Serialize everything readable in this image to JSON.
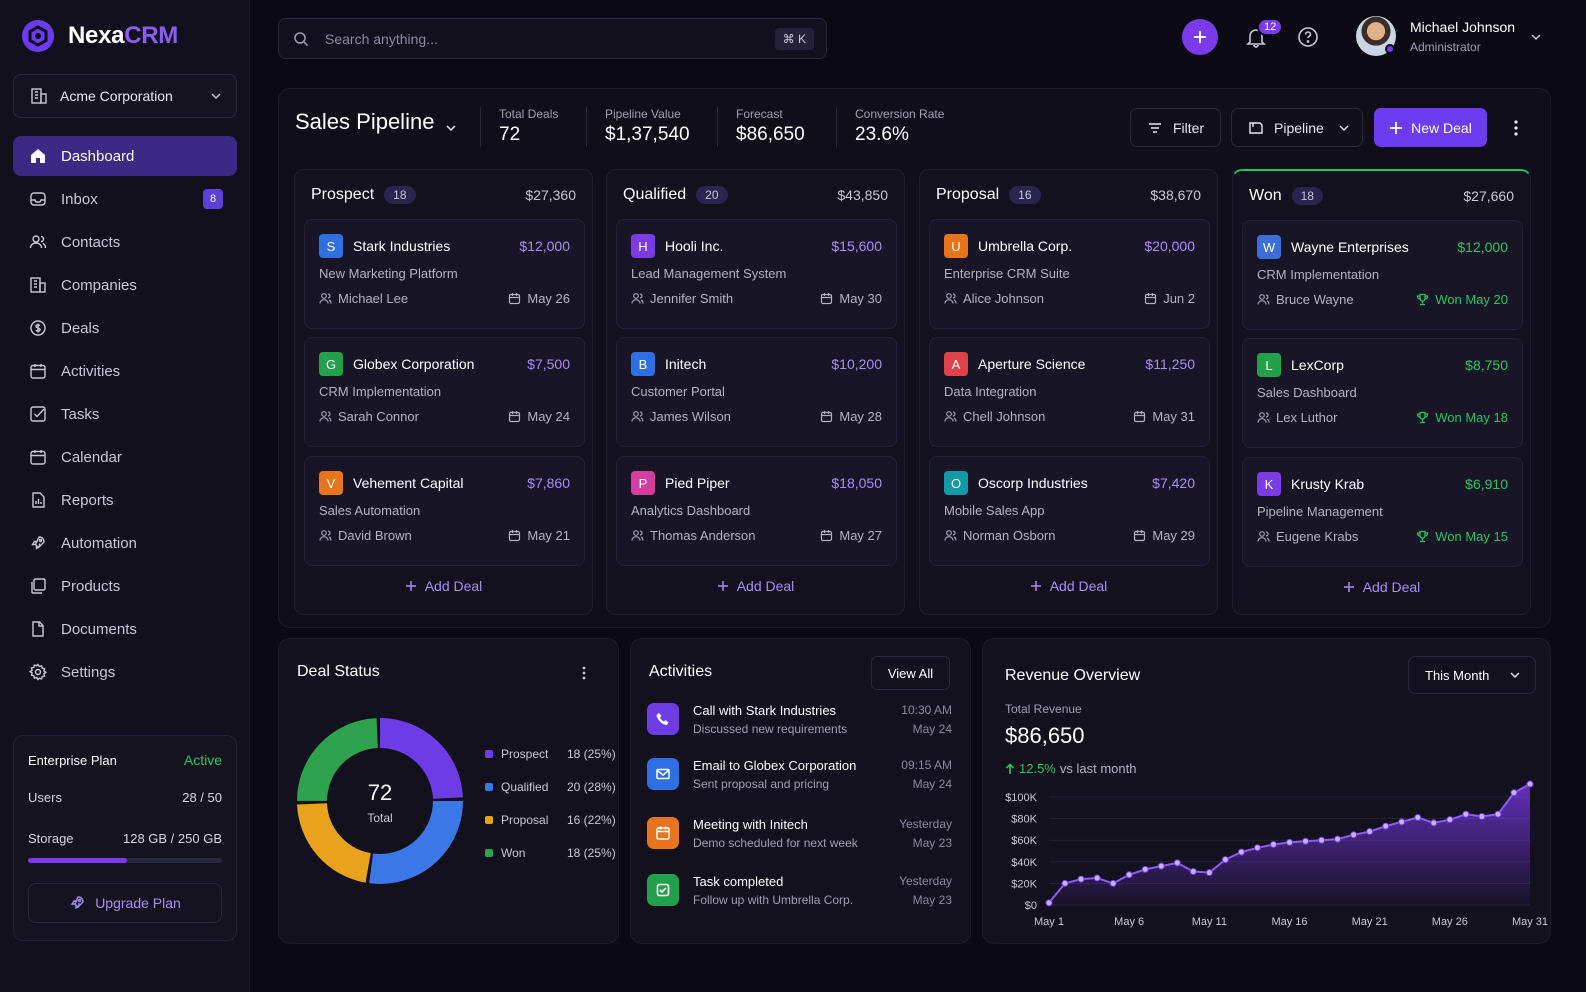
{
  "brand": {
    "name_part1": "Nexa",
    "name_part2": "CRM"
  },
  "org": {
    "name": "Acme Corporation"
  },
  "nav": [
    {
      "id": "dashboard",
      "label": "Dashboard",
      "icon": "home-icon",
      "active": true
    },
    {
      "id": "inbox",
      "label": "Inbox",
      "icon": "inbox-icon",
      "badge": "8"
    },
    {
      "id": "contacts",
      "label": "Contacts",
      "icon": "users-icon"
    },
    {
      "id": "companies",
      "label": "Companies",
      "icon": "building-icon"
    },
    {
      "id": "deals",
      "label": "Deals",
      "icon": "dollar-icon"
    },
    {
      "id": "activities",
      "label": "Activities",
      "icon": "calendar-icon"
    },
    {
      "id": "tasks",
      "label": "Tasks",
      "icon": "checkbox-icon"
    },
    {
      "id": "calendar",
      "label": "Calendar",
      "icon": "calendar-icon"
    },
    {
      "id": "reports",
      "label": "Reports",
      "icon": "report-icon"
    },
    {
      "id": "automation",
      "label": "Automation",
      "icon": "rocket-icon"
    },
    {
      "id": "products",
      "label": "Products",
      "icon": "box-icon"
    },
    {
      "id": "documents",
      "label": "Documents",
      "icon": "document-icon"
    },
    {
      "id": "settings",
      "label": "Settings",
      "icon": "gear-icon"
    }
  ],
  "plan": {
    "name": "Enterprise Plan",
    "status": "Active",
    "users_label": "Users",
    "users_value": "28 / 50",
    "storage_label": "Storage",
    "storage_value": "128 GB / 250 GB",
    "storage_fraction": 0.512,
    "upgrade_label": "Upgrade Plan"
  },
  "search": {
    "placeholder": "Search anything...",
    "shortcut": "⌘ K"
  },
  "notifications": {
    "count": "12"
  },
  "user": {
    "name": "Michael Johnson",
    "role": "Administrator"
  },
  "pipeline": {
    "title": "Sales Pipeline",
    "stats": [
      {
        "label": "Total Deals",
        "value": "72"
      },
      {
        "label": "Pipeline Value",
        "value": "$1,37,540"
      },
      {
        "label": "Forecast",
        "value": "$86,650"
      },
      {
        "label": "Conversion Rate",
        "value": "23.6%"
      }
    ],
    "filter_label": "Filter",
    "view_label": "Pipeline",
    "new_deal_label": "New Deal",
    "add_deal_label": "Add Deal",
    "columns": [
      {
        "name": "Prospect",
        "count": "18",
        "total": "$27,360",
        "deals": [
          {
            "letter": "S",
            "color": "#2f6fe4",
            "company": "Stark Industries",
            "amount": "$12,000",
            "desc": "New Marketing Platform",
            "owner": "Michael Lee",
            "date": "May 26"
          },
          {
            "letter": "G",
            "color": "#22a04b",
            "company": "Globex Corporation",
            "amount": "$7,500",
            "desc": "CRM Implementation",
            "owner": "Sarah Connor",
            "date": "May 24"
          },
          {
            "letter": "V",
            "color": "#e8741c",
            "company": "Vehement Capital",
            "amount": "$7,860",
            "desc": "Sales Automation",
            "owner": "David Brown",
            "date": "May 21"
          }
        ]
      },
      {
        "name": "Qualified",
        "count": "20",
        "total": "$43,850",
        "deals": [
          {
            "letter": "H",
            "color": "#7b3ce6",
            "company": "Hooli Inc.",
            "amount": "$15,600",
            "desc": "Lead Management System",
            "owner": "Jennifer Smith",
            "date": "May 30"
          },
          {
            "letter": "B",
            "color": "#2f6fe4",
            "company": "Initech",
            "amount": "$10,200",
            "desc": "Customer Portal",
            "owner": "James Wilson",
            "date": "May 28"
          },
          {
            "letter": "P",
            "color": "#d63da0",
            "company": "Pied Piper",
            "amount": "$18,050",
            "desc": "Analytics Dashboard",
            "owner": "Thomas Anderson",
            "date": "May 27"
          }
        ]
      },
      {
        "name": "Proposal",
        "count": "16",
        "total": "$38,670",
        "deals": [
          {
            "letter": "U",
            "color": "#e8741c",
            "company": "Umbrella Corp.",
            "amount": "$20,000",
            "desc": "Enterprise CRM Suite",
            "owner": "Alice Johnson",
            "date": "Jun 2"
          },
          {
            "letter": "A",
            "color": "#e0424a",
            "company": "Aperture Science",
            "amount": "$11,250",
            "desc": "Data Integration",
            "owner": "Chell Johnson",
            "date": "May 31"
          },
          {
            "letter": "O",
            "color": "#139aa8",
            "company": "Oscorp Industries",
            "amount": "$7,420",
            "desc": "Mobile Sales App",
            "owner": "Norman Osborn",
            "date": "May 29"
          }
        ]
      },
      {
        "name": "Won",
        "count": "18",
        "total": "$27,660",
        "deals": [
          {
            "letter": "W",
            "color": "#3d6fd8",
            "company": "Wayne Enterprises",
            "amount": "$12,000",
            "desc": "CRM Implementation",
            "owner": "Bruce Wayne",
            "date": "Won May 20"
          },
          {
            "letter": "L",
            "color": "#22a04b",
            "company": "LexCorp",
            "amount": "$8,750",
            "desc": "Sales Dashboard",
            "owner": "Lex Luthor",
            "date": "Won May 18"
          },
          {
            "letter": "K",
            "color": "#7b3ce6",
            "company": "Krusty Krab",
            "amount": "$6,910",
            "desc": "Pipeline Management",
            "owner": "Eugene Krabs",
            "date": "Won May 15"
          }
        ]
      }
    ]
  },
  "deal_status": {
    "title": "Deal Status",
    "center_value": "72",
    "center_label": "Total",
    "items": [
      {
        "label": "Prospect",
        "count": 18,
        "display": "18 (25%)",
        "color": "#6d3ce6"
      },
      {
        "label": "Qualified",
        "count": 20,
        "display": "20 (28%)",
        "color": "#3a78e8"
      },
      {
        "label": "Proposal",
        "count": 16,
        "display": "16 (22%)",
        "color": "#e8a21c"
      },
      {
        "label": "Won",
        "count": 18,
        "display": "18 (25%)",
        "color": "#2fa24e"
      }
    ]
  },
  "activities": {
    "title": "Activities",
    "view_all_label": "View All",
    "items": [
      {
        "icon": "phone-icon",
        "color": "#6d3ce6",
        "title": "Call with Stark Industries",
        "sub": "Discussed new requirements",
        "time": "10:30 AM",
        "date": "May 24"
      },
      {
        "icon": "mail-icon",
        "color": "#2f6fe4",
        "title": "Email to Globex Corporation",
        "sub": "Sent proposal and pricing",
        "time": "09:15 AM",
        "date": "May 24"
      },
      {
        "icon": "calendar-icon",
        "color": "#e8741c",
        "title": "Meeting with Initech",
        "sub": "Demo scheduled for next week",
        "time": "Yesterday",
        "date": "May 23"
      },
      {
        "icon": "check-icon",
        "color": "#22a04b",
        "title": "Task completed",
        "sub": "Follow up with Umbrella Corp.",
        "time": "Yesterday",
        "date": "May 23"
      }
    ]
  },
  "revenue": {
    "title": "Revenue Overview",
    "period_label": "This Month",
    "total_label": "Total Revenue",
    "total_value": "$86,650",
    "change_value": "12.5%",
    "change_suffix": "vs last month"
  },
  "chart_data": {
    "type": "area",
    "title": "Revenue Overview",
    "xlabel": "",
    "ylabel": "",
    "x": [
      1,
      2,
      3,
      4,
      5,
      6,
      7,
      8,
      9,
      10,
      11,
      12,
      13,
      14,
      15,
      16,
      17,
      18,
      19,
      20,
      21,
      22,
      23,
      24,
      25,
      26,
      27,
      28,
      29,
      30,
      31
    ],
    "x_tick_values": [
      1,
      6,
      11,
      16,
      21,
      26,
      31
    ],
    "x_tick_labels": [
      "May 1",
      "May 6",
      "May 11",
      "May 16",
      "May 21",
      "May 26",
      "May 31"
    ],
    "y_ticks": [
      0,
      20000,
      40000,
      60000,
      80000,
      100000
    ],
    "y_tick_labels": [
      "$0",
      "$20K",
      "$40K",
      "$60K",
      "$80K",
      "$100K"
    ],
    "ylim": [
      0,
      100000
    ],
    "grid": true,
    "series": [
      {
        "values": [
          2000,
          20000,
          24000,
          25000,
          20000,
          28000,
          33000,
          36000,
          39000,
          31000,
          30000,
          42000,
          49000,
          53000,
          56000,
          58000,
          59000,
          60000,
          61000,
          65000,
          68000,
          73000,
          77000,
          81000,
          76000,
          79000,
          84000,
          82000,
          84000,
          104000,
          112000
        ]
      }
    ]
  }
}
